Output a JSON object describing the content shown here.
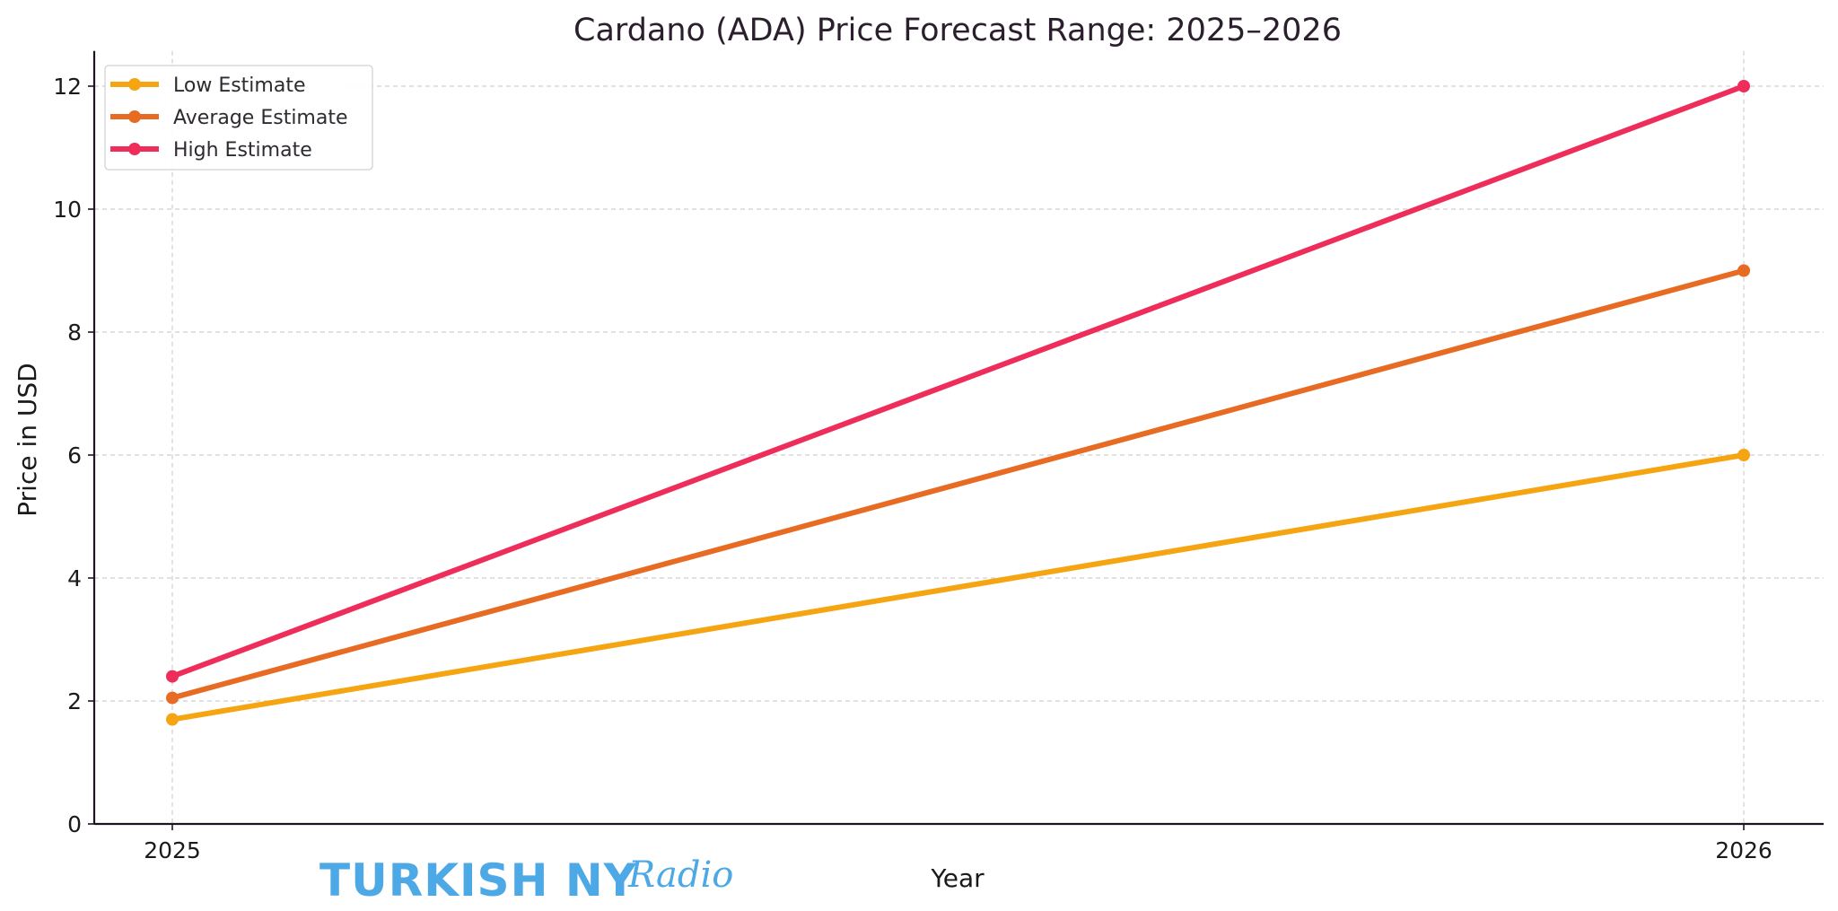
{
  "chart_data": {
    "type": "line",
    "title": "Cardano (ADA) Price Forecast Range: 2025–2026",
    "xlabel": "Year",
    "ylabel": "Price in USD",
    "categories": [
      "2025",
      "2026"
    ],
    "x": [
      2025,
      2026
    ],
    "ylim": [
      0,
      12.5
    ],
    "yticks": [
      0,
      2,
      4,
      6,
      8,
      10,
      12
    ],
    "ytick_labels": [
      "0",
      "2",
      "4",
      "6",
      "8",
      "10",
      "12"
    ],
    "xtick_labels": [
      "2025",
      "2026"
    ],
    "grid": true,
    "legend_position": "top-left",
    "series": [
      {
        "name": "Low Estimate",
        "values": [
          1.7,
          6
        ],
        "color": "#f5a511"
      },
      {
        "name": "Average Estimate",
        "values": [
          2.05,
          9
        ],
        "color": "#e86b23"
      },
      {
        "name": "High Estimate",
        "values": [
          2.4,
          12
        ],
        "color": "#ee2d5b"
      }
    ]
  },
  "watermark": {
    "main": "TURKISH NY",
    "script": "Radio",
    "color": "#4da8e6"
  }
}
